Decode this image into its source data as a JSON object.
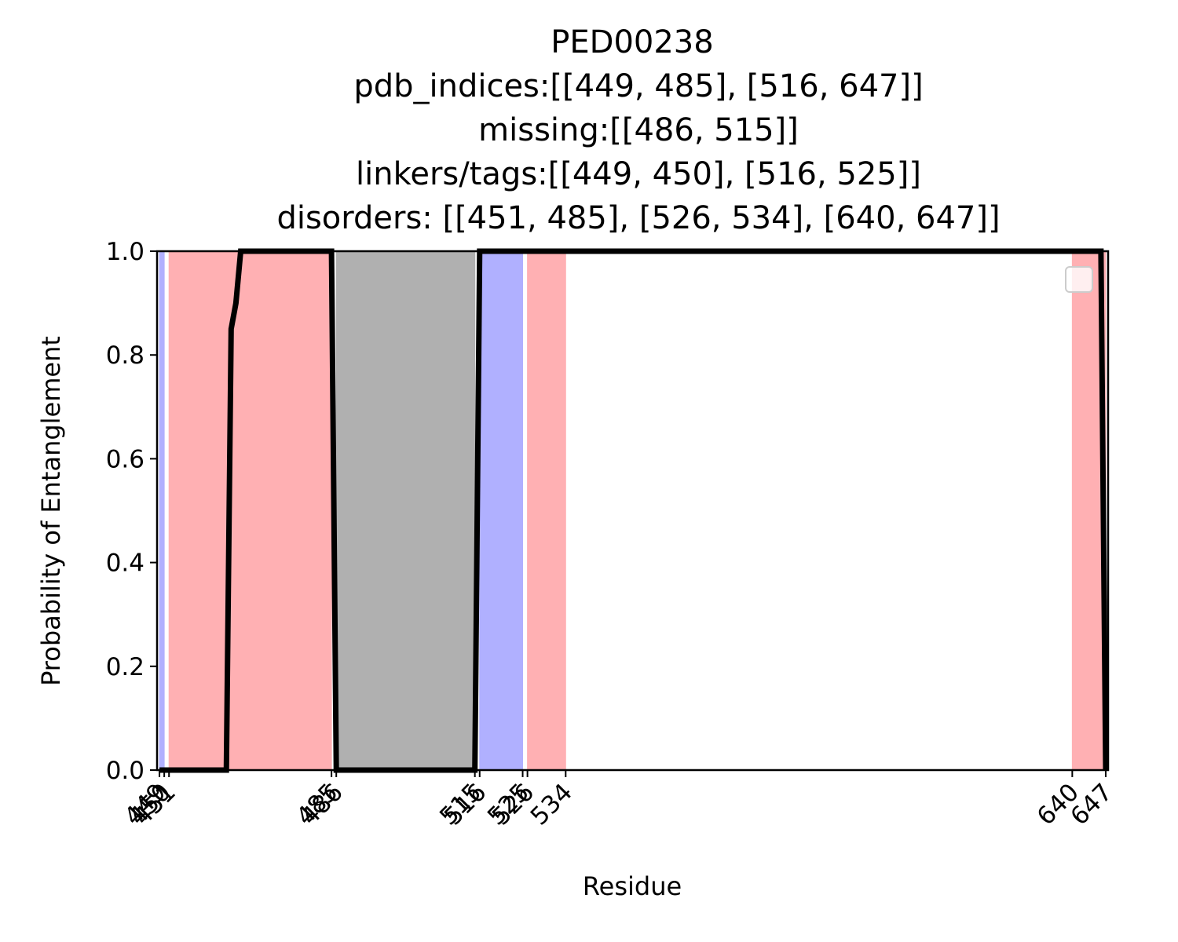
{
  "chart_data": {
    "type": "line",
    "title_lines": [
      "PED00238",
      "pdb_indices:[[449, 485], [516, 647]]",
      "missing:[[486, 515]]",
      "linkers/tags:[[449, 450], [516, 525]]",
      "disorders: [[451, 485], [526, 534], [640, 647]]"
    ],
    "xlabel": "Residue",
    "ylabel": "Probability of Entanglement",
    "xlim": [
      448.5,
      647.5
    ],
    "ylim": [
      0.0,
      1.0
    ],
    "x_ticks": [
      "449",
      "450",
      "451",
      "485",
      "486",
      "515",
      "516",
      "525",
      "526",
      "534",
      "640",
      "647"
    ],
    "y_ticks": [
      "0.0",
      "0.2",
      "0.4",
      "0.6",
      "0.8",
      "1.0"
    ],
    "regions": [
      {
        "kind": "linker",
        "start": 449,
        "end": 450,
        "color": "#b0b0ff"
      },
      {
        "kind": "disorder",
        "start": 451,
        "end": 485,
        "color": "#ffb0b3"
      },
      {
        "kind": "missing",
        "start": 486,
        "end": 515,
        "color": "#b0b0b0"
      },
      {
        "kind": "linker",
        "start": 516,
        "end": 525,
        "color": "#b0b0ff"
      },
      {
        "kind": "disorder",
        "start": 526,
        "end": 534,
        "color": "#ffb0b3"
      },
      {
        "kind": "disorder",
        "start": 640,
        "end": 647,
        "color": "#ffb0b3"
      }
    ],
    "series": [
      {
        "color": "#000000",
        "x": [
          449,
          463,
          464,
          465,
          466,
          485,
          486,
          515,
          516,
          646,
          647
        ],
        "y": [
          0.0,
          0.0,
          0.85,
          0.9,
          1.0,
          1.0,
          0.0,
          0.0,
          1.0,
          1.0,
          0.0
        ]
      }
    ],
    "legend": {
      "position": "top-right",
      "entries": []
    },
    "grid": false
  }
}
